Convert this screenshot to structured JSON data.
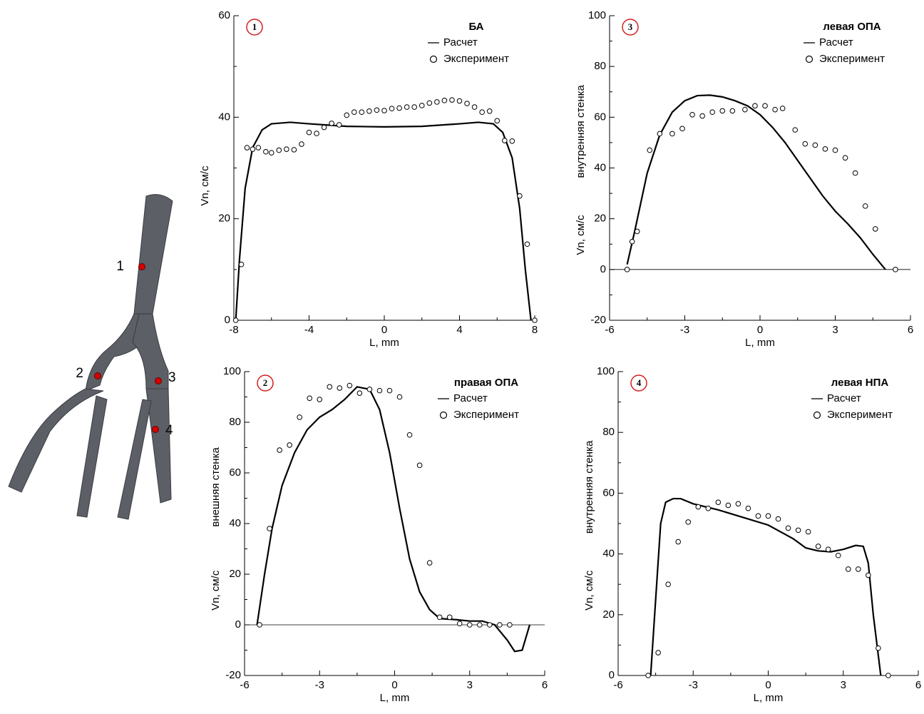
{
  "figure_labels": [
    "1",
    "2",
    "3",
    "4"
  ],
  "chart_data": [
    {
      "type": "line",
      "badge": "1",
      "title": "БА",
      "xlabel": "L, mm",
      "ylabel": "Vn, см/с",
      "xlim": [
        -8,
        8
      ],
      "xticks": [
        -8,
        -4,
        0,
        4,
        8
      ],
      "ylim": [
        0,
        60
      ],
      "yticks": [
        0,
        20,
        40,
        60
      ],
      "series": [
        {
          "name": "Расчет",
          "color": "#000000",
          "style": "line",
          "x": [
            -7.9,
            -7.7,
            -7.4,
            -7,
            -6.5,
            -6,
            -5,
            -4,
            -2,
            0,
            2,
            4,
            5,
            5.8,
            6.3,
            6.8,
            7.2,
            7.5,
            7.8
          ],
          "values": [
            0,
            12,
            26,
            34,
            37.5,
            38.7,
            39,
            38.7,
            38.2,
            38.1,
            38.2,
            38.7,
            39,
            38.7,
            37,
            32,
            22,
            10,
            0
          ]
        },
        {
          "name": "Эксперимент",
          "color": "#000000",
          "style": "marker",
          "x": [
            -7.9,
            -7.6,
            -7.3,
            -7,
            -6.7,
            -6.3,
            -6,
            -5.6,
            -5.2,
            -4.8,
            -4.4,
            -4,
            -3.6,
            -3.2,
            -2.8,
            -2.4,
            -2,
            -1.6,
            -1.2,
            -0.8,
            -0.4,
            0,
            0.4,
            0.8,
            1.2,
            1.6,
            2,
            2.4,
            2.8,
            3.2,
            3.6,
            4,
            4.4,
            4.8,
            5.2,
            5.6,
            6,
            6.4,
            6.8,
            7.2,
            7.6,
            8
          ],
          "values": [
            0,
            11,
            34,
            33.7,
            34,
            33.2,
            33,
            33.5,
            33.7,
            33.6,
            34.7,
            37,
            36.8,
            38,
            38.8,
            38.5,
            40.4,
            41,
            41,
            41.2,
            41.4,
            41.3,
            41.7,
            41.8,
            42,
            42,
            42.3,
            42.8,
            43,
            43.3,
            43.4,
            43.2,
            42.7,
            42,
            41,
            41.2,
            39.3,
            35.4,
            35.3,
            24.5,
            15,
            0
          ]
        }
      ]
    },
    {
      "type": "line",
      "badge": "3",
      "title": "левая ОПА",
      "xlabel": "L, mm",
      "ylabel": "Vn, см/с",
      "wall_label": "внутренняя стенка",
      "xlim": [
        -6,
        6
      ],
      "xticks": [
        -6,
        -3,
        0,
        3,
        6
      ],
      "ylim": [
        -20,
        100
      ],
      "yticks": [
        -20,
        0,
        20,
        40,
        60,
        80,
        100
      ],
      "series": [
        {
          "name": "Расчет",
          "color": "#000000",
          "style": "line",
          "x": [
            -5.3,
            -5,
            -4.5,
            -4,
            -3.5,
            -3,
            -2.5,
            -2,
            -1.5,
            -1,
            -0.5,
            0,
            0.5,
            1,
            1.5,
            2,
            2.5,
            3,
            3.5,
            4,
            4.5,
            5
          ],
          "values": [
            2,
            15,
            38,
            53,
            62,
            66.5,
            68.5,
            68.7,
            68,
            66.5,
            64.5,
            61,
            56,
            50,
            43,
            36,
            29,
            23,
            18,
            12.5,
            6,
            0
          ]
        },
        {
          "name": "Эксперимент",
          "color": "#000000",
          "style": "marker",
          "x": [
            -5.3,
            -5.1,
            -4.9,
            -4.4,
            -4,
            -3.5,
            -3.1,
            -2.7,
            -2.3,
            -1.9,
            -1.5,
            -1.1,
            -0.6,
            -0.2,
            0.2,
            0.6,
            0.9,
            1.4,
            1.8,
            2.2,
            2.6,
            3,
            3.4,
            3.8,
            4.2,
            4.6,
            5.4
          ],
          "values": [
            0,
            11,
            15,
            47,
            53.5,
            53.5,
            55.5,
            61,
            60.5,
            62,
            62.5,
            62.5,
            63,
            64.5,
            64.5,
            63,
            63.5,
            55,
            49.5,
            49,
            47.5,
            47,
            44,
            38,
            25,
            16,
            0
          ]
        }
      ]
    },
    {
      "type": "line",
      "badge": "2",
      "title": "правая ОПА",
      "xlabel": "L, mm",
      "ylabel": "Vn, см/с",
      "wall_label": "внешняя стенка",
      "xlim": [
        -6,
        6
      ],
      "xticks": [
        -6,
        -3,
        0,
        3,
        6
      ],
      "ylim": [
        -20,
        100
      ],
      "yticks": [
        -20,
        0,
        20,
        40,
        60,
        80,
        100
      ],
      "series": [
        {
          "name": "Расчет",
          "color": "#000000",
          "style": "line",
          "x": [
            -5.5,
            -5.2,
            -4.9,
            -4.5,
            -4,
            -3.5,
            -3,
            -2.5,
            -2,
            -1.5,
            -1,
            -0.6,
            -0.2,
            0.2,
            0.6,
            1,
            1.4,
            1.8,
            2.5,
            3,
            3.5,
            4,
            4.5,
            4.8,
            5.1,
            5.4
          ],
          "values": [
            0,
            20,
            38,
            55,
            68,
            77,
            82,
            85,
            89,
            94,
            93,
            85,
            68,
            46,
            26,
            13,
            6,
            2.5,
            2,
            1.5,
            1.5,
            0,
            -6,
            -10.5,
            -10,
            0
          ]
        },
        {
          "name": "Эксперимент",
          "color": "#000000",
          "style": "marker",
          "x": [
            -5.4,
            -5,
            -4.6,
            -4.2,
            -3.8,
            -3.4,
            -3,
            -2.6,
            -2.2,
            -1.8,
            -1.4,
            -1,
            -0.6,
            -0.2,
            0.2,
            0.6,
            1,
            1.4,
            1.8,
            2.2,
            2.6,
            3,
            3.4,
            3.8,
            4.2,
            4.6
          ],
          "values": [
            0,
            38,
            69,
            71,
            82,
            89.5,
            89,
            94,
            93.5,
            94.5,
            91.5,
            93,
            92.5,
            92.5,
            90,
            75,
            63,
            24.5,
            3,
            3,
            0.5,
            0,
            0,
            0,
            0,
            0
          ]
        }
      ]
    },
    {
      "type": "line",
      "badge": "4",
      "title": "левая НПА",
      "xlabel": "L, mm",
      "ylabel": "Vn, см/с",
      "wall_label": "внутренняя стенка",
      "xlim": [
        -6,
        6
      ],
      "xticks": [
        -6,
        -3,
        0,
        3,
        6
      ],
      "ylim": [
        0,
        100
      ],
      "yticks": [
        0,
        20,
        40,
        60,
        80,
        100
      ],
      "series": [
        {
          "name": "Расчет",
          "color": "#000000",
          "style": "line",
          "x": [
            -4.7,
            -4.5,
            -4.3,
            -4.1,
            -3.8,
            -3.5,
            -3,
            -2,
            -1,
            0,
            1,
            1.5,
            2,
            2.5,
            3,
            3.5,
            3.8,
            4,
            4.2,
            4.5
          ],
          "values": [
            0,
            25,
            50,
            57,
            58.2,
            58.2,
            56.5,
            54.5,
            52,
            49.5,
            45,
            42,
            41,
            40.7,
            41.5,
            42.8,
            42.5,
            37,
            20,
            0
          ]
        },
        {
          "name": "Эксперимент",
          "color": "#000000",
          "style": "marker",
          "x": [
            -4.8,
            -4.4,
            -4,
            -3.6,
            -3.2,
            -2.8,
            -2.4,
            -2,
            -1.6,
            -1.2,
            -0.8,
            -0.4,
            0,
            0.4,
            0.8,
            1.2,
            1.6,
            2,
            2.4,
            2.8,
            3.2,
            3.6,
            4,
            4.4,
            4.8
          ],
          "values": [
            0,
            7.5,
            30,
            44,
            50.5,
            55.5,
            55,
            57,
            56,
            56.5,
            55,
            52.5,
            52.5,
            51.5,
            48.5,
            47.8,
            47.3,
            42.5,
            41.5,
            39.5,
            35,
            35,
            33,
            9,
            0
          ]
        }
      ]
    }
  ]
}
